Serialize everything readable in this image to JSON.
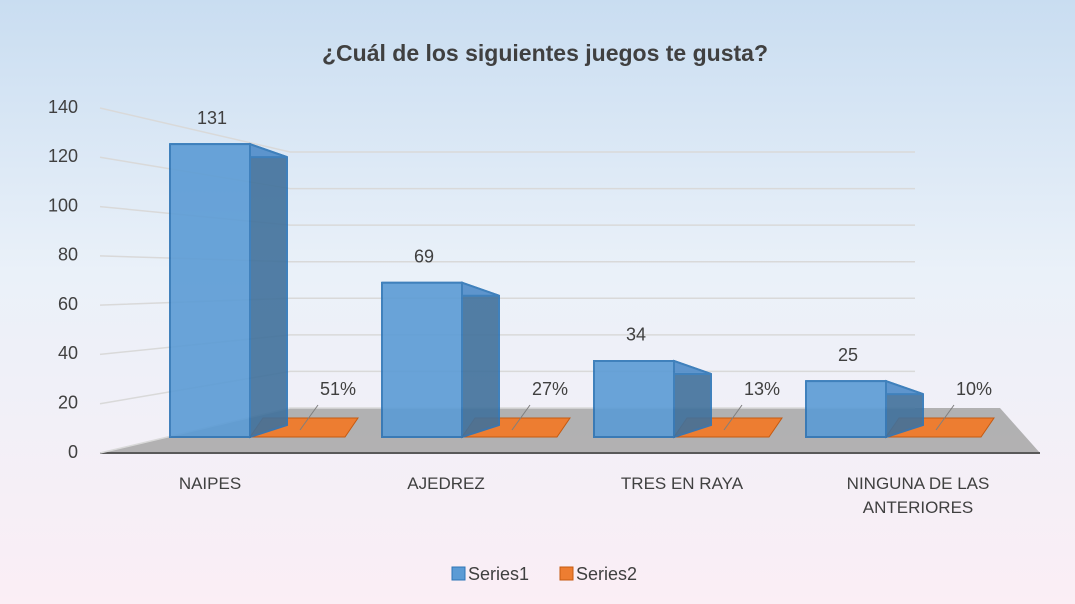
{
  "chart_data": {
    "type": "bar3d",
    "title": "¿Cuál de los siguientes juegos te gusta?",
    "categories": [
      "NAIPES",
      "AJEDREZ",
      "TRES EN RAYA",
      "NINGUNA DE LAS ANTERIORES"
    ],
    "series": [
      {
        "name": "Series1",
        "color": "#5b9bd5",
        "values": [
          131,
          69,
          34,
          25
        ]
      },
      {
        "name": "Series2",
        "color": "#ed7d31",
        "values": [
          0.51,
          0.27,
          0.13,
          0.1
        ],
        "value_labels": [
          "51%",
          "27%",
          "13%",
          "10%"
        ]
      }
    ],
    "ylim": [
      0,
      140
    ],
    "yticks": [
      0,
      20,
      40,
      60,
      80,
      100,
      120,
      140
    ],
    "grid": true,
    "legend": "bottom"
  }
}
